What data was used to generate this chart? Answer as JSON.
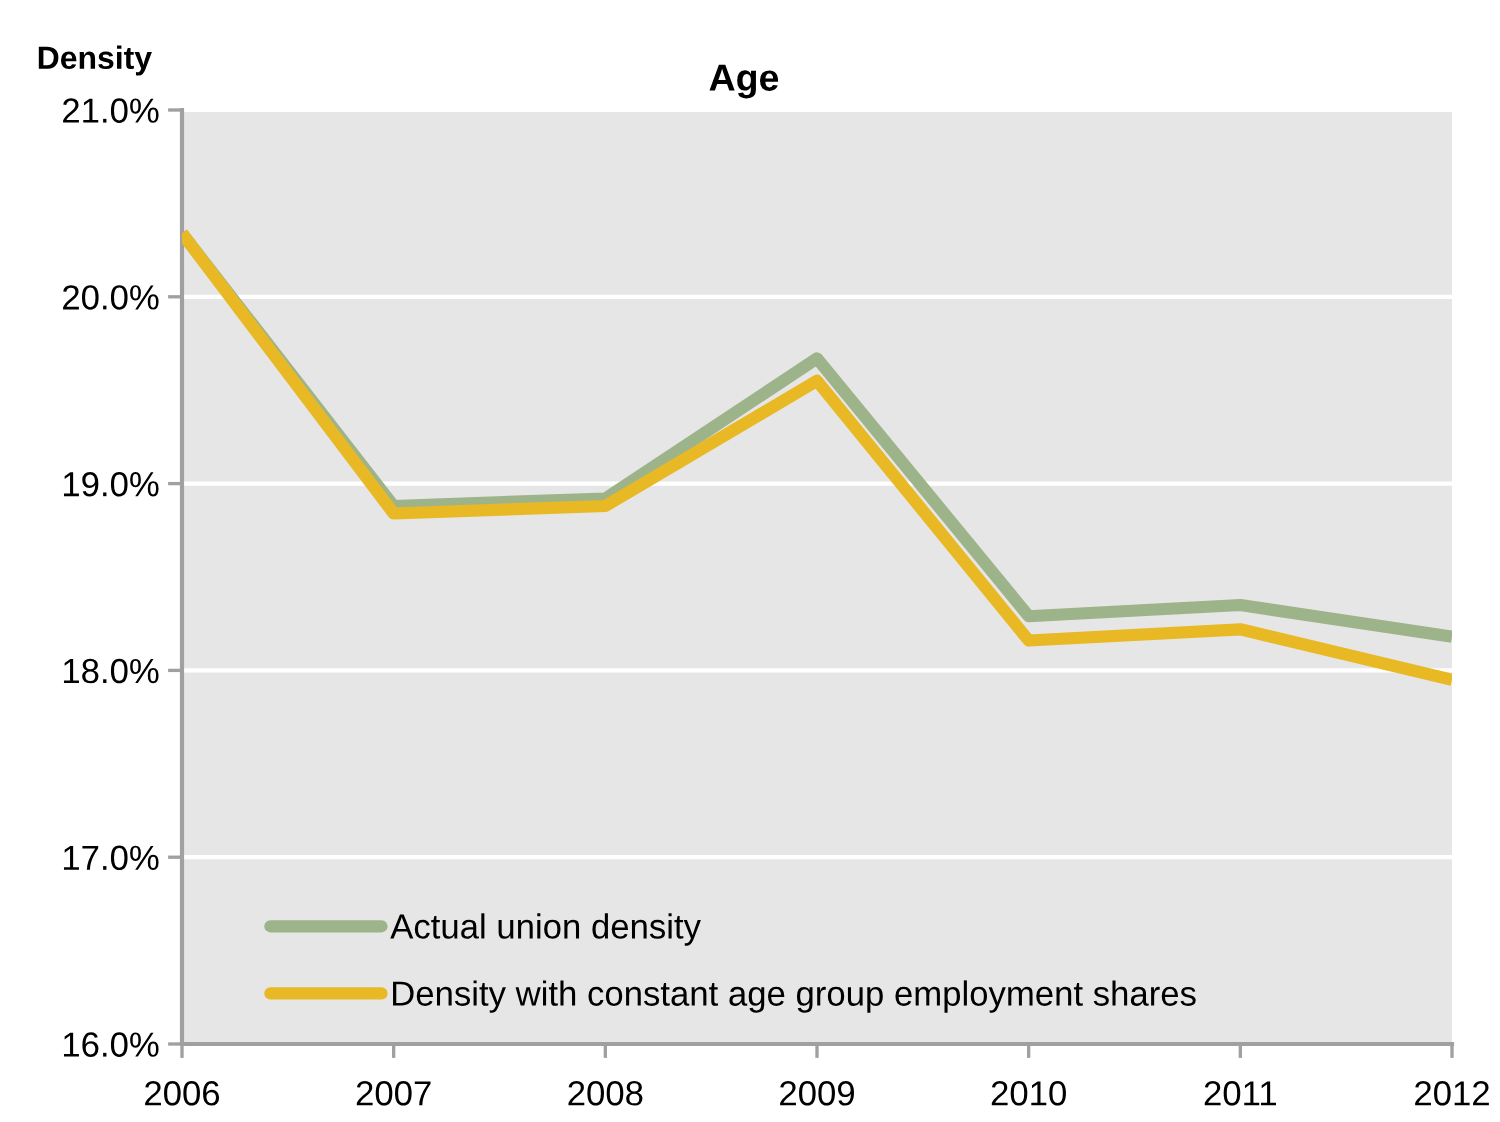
{
  "chart_data": {
    "type": "line",
    "title": "Age",
    "ylabel": "Density",
    "x": [
      2006,
      2007,
      2008,
      2009,
      2010,
      2011,
      2012
    ],
    "series": [
      {
        "name": "Actual union density",
        "color": "#9db48a",
        "values": [
          20.34,
          18.88,
          18.92,
          19.67,
          18.29,
          18.35,
          18.18
        ]
      },
      {
        "name": "Density with constant age group employment shares",
        "color": "#e8b925",
        "values": [
          20.34,
          18.84,
          18.88,
          19.55,
          18.16,
          18.22,
          17.95
        ]
      }
    ],
    "xlim": [
      2006,
      2012
    ],
    "xticks": [
      2006,
      2007,
      2008,
      2009,
      2010,
      2011,
      2012
    ],
    "ylim": [
      16,
      21
    ],
    "yticks": [
      {
        "value": 16,
        "label": "16.0%"
      },
      {
        "value": 17,
        "label": "17.0%"
      },
      {
        "value": 18,
        "label": "18.0%"
      },
      {
        "value": 19,
        "label": "19.0%"
      },
      {
        "value": 20,
        "label": "20.0%"
      },
      {
        "value": 21,
        "label": "21.0%"
      }
    ],
    "grid": "y",
    "legend": "bottom left"
  }
}
